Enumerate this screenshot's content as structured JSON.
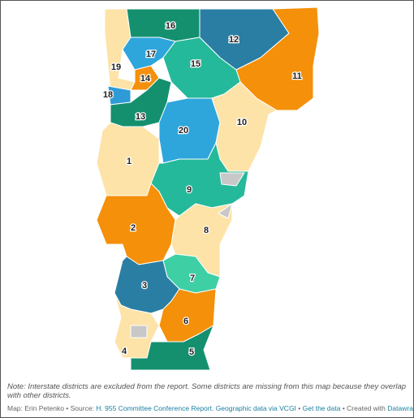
{
  "map": {
    "districts": [
      {
        "label": "1"
      },
      {
        "label": "2"
      },
      {
        "label": "3"
      },
      {
        "label": "4"
      },
      {
        "label": "5"
      },
      {
        "label": "6"
      },
      {
        "label": "7"
      },
      {
        "label": "8"
      },
      {
        "label": "9"
      },
      {
        "label": "10"
      },
      {
        "label": "11"
      },
      {
        "label": "12"
      },
      {
        "label": "13"
      },
      {
        "label": "14"
      },
      {
        "label": "15"
      },
      {
        "label": "16"
      },
      {
        "label": "17"
      },
      {
        "label": "18"
      },
      {
        "label": "19"
      },
      {
        "label": "20"
      }
    ]
  },
  "footer": {
    "note": "Note: Interstate districts are excluded from the report. Some districts are missing from this map because they overlap with other districts.",
    "credit_prefix": "Map: Erin Petenko • Source:",
    "source_link": "H. 955 Committee Conference Report. Geographic data via VCGI",
    "separator": "•",
    "data_link": "Get the data",
    "created_with": "• Created with",
    "tool_link": "Datawrapper"
  }
}
